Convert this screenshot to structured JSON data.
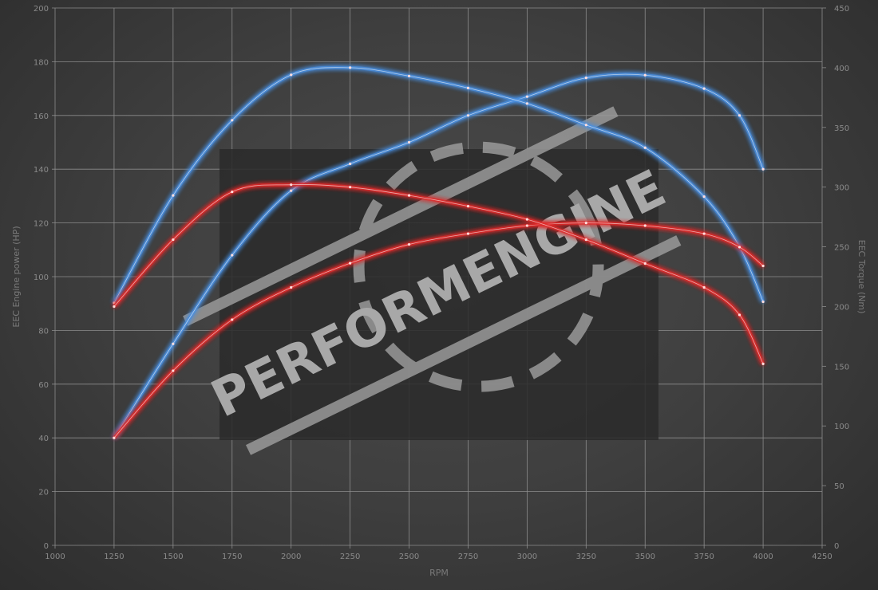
{
  "chart_data": {
    "type": "line",
    "title": "",
    "xlabel": "RPM",
    "ylabel_left": "EEC Engine power (HP)",
    "ylabel_right": "EEC Torque (Nm)",
    "xlim": [
      1000,
      4250
    ],
    "ylim_left": [
      0,
      200
    ],
    "ylim_right": [
      0,
      450
    ],
    "x_ticks": [
      1000,
      1250,
      1500,
      1750,
      2000,
      2250,
      2500,
      2750,
      3000,
      3250,
      3500,
      3750,
      4000,
      4250
    ],
    "y_ticks_left": [
      0,
      20,
      40,
      60,
      80,
      100,
      120,
      140,
      160,
      180,
      200
    ],
    "y_ticks_right": [
      0,
      50,
      100,
      150,
      200,
      250,
      300,
      350,
      400,
      450
    ],
    "grid": true,
    "watermark": "PERFORMENGINE",
    "x": [
      1250,
      1500,
      1750,
      2000,
      2250,
      2500,
      2750,
      3000,
      3250,
      3500,
      3750,
      3900,
      4000
    ],
    "series": [
      {
        "axis": "left",
        "unit": "HP",
        "color": "#4a8fe0",
        "values": [
          40,
          75,
          108,
          132,
          142,
          150,
          160,
          167,
          174,
          175,
          170,
          160,
          140
        ]
      },
      {
        "axis": "right",
        "unit": "Nm",
        "color": "#4a8fe0",
        "values": [
          203,
          293,
          356,
          394,
          400,
          393,
          383,
          370,
          352,
          333,
          292,
          250,
          204
        ]
      },
      {
        "axis": "left",
        "unit": "HP",
        "color": "#e02a2a",
        "values": [
          40,
          65,
          84,
          96,
          105,
          112,
          116,
          119,
          120,
          119,
          116,
          111,
          104
        ]
      },
      {
        "axis": "right",
        "unit": "Nm",
        "color": "#e02a2a",
        "values": [
          200,
          256,
          296,
          302,
          300,
          293,
          284,
          273,
          256,
          236,
          216,
          193,
          152
        ]
      }
    ]
  }
}
